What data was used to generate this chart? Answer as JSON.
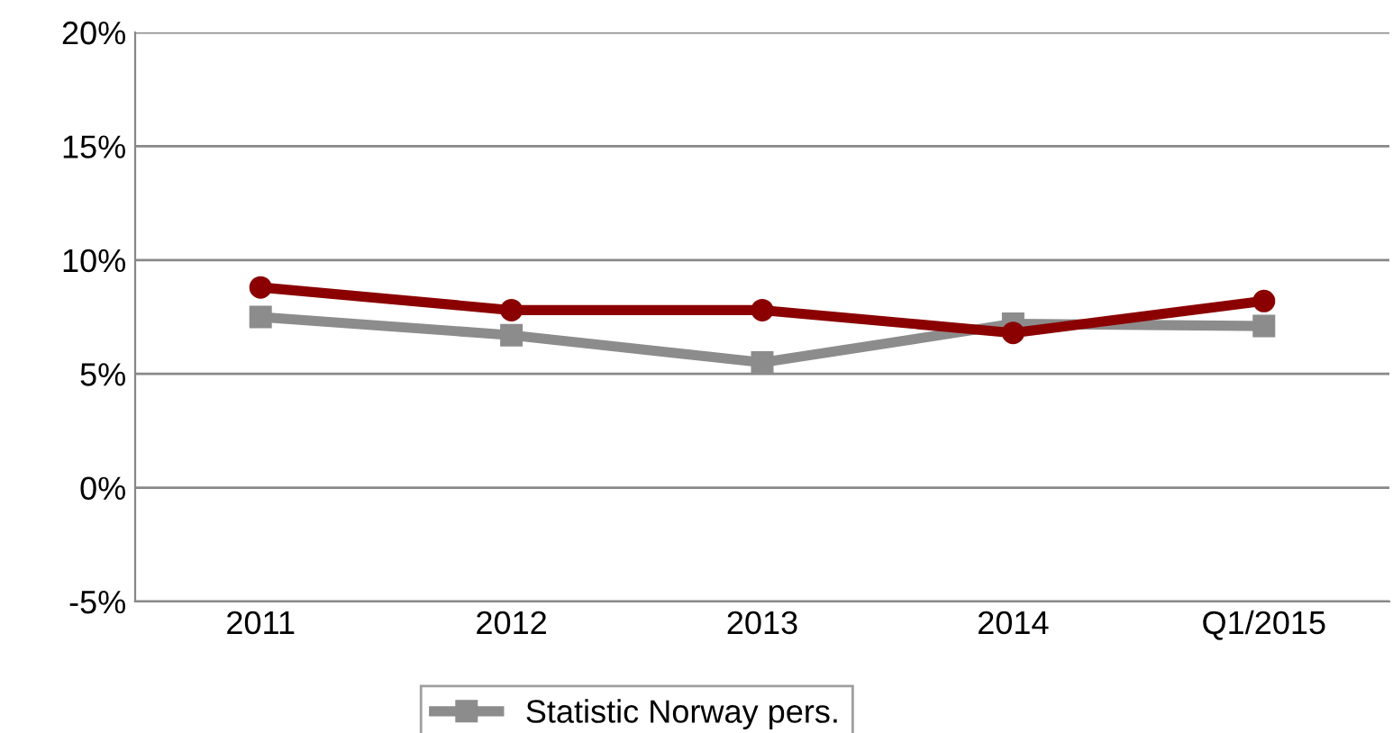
{
  "chart_data": {
    "type": "line",
    "categories": [
      "2011",
      "2012",
      "2013",
      "2014",
      "Q1/2015"
    ],
    "series": [
      {
        "color": "#8b0000",
        "values": [
          8.8,
          7.8,
          7.8,
          6.8,
          8.2
        ],
        "marker": "circle"
      },
      {
        "name": "Statistic Norway pers.",
        "color": "#8c8c8c",
        "values": [
          7.5,
          6.7,
          5.5,
          7.2,
          7.1
        ],
        "marker": "square"
      }
    ],
    "ylim": [
      -5,
      20
    ],
    "yticks": [
      {
        "value": -5,
        "label": "-5%"
      },
      {
        "value": 0,
        "label": "0%"
      },
      {
        "value": 5,
        "label": "5%"
      },
      {
        "value": 10,
        "label": "10%"
      },
      {
        "value": 15,
        "label": "15%"
      },
      {
        "value": 20,
        "label": "20%"
      }
    ],
    "grid": "y",
    "legend": "bottom",
    "line_style": "solid"
  }
}
